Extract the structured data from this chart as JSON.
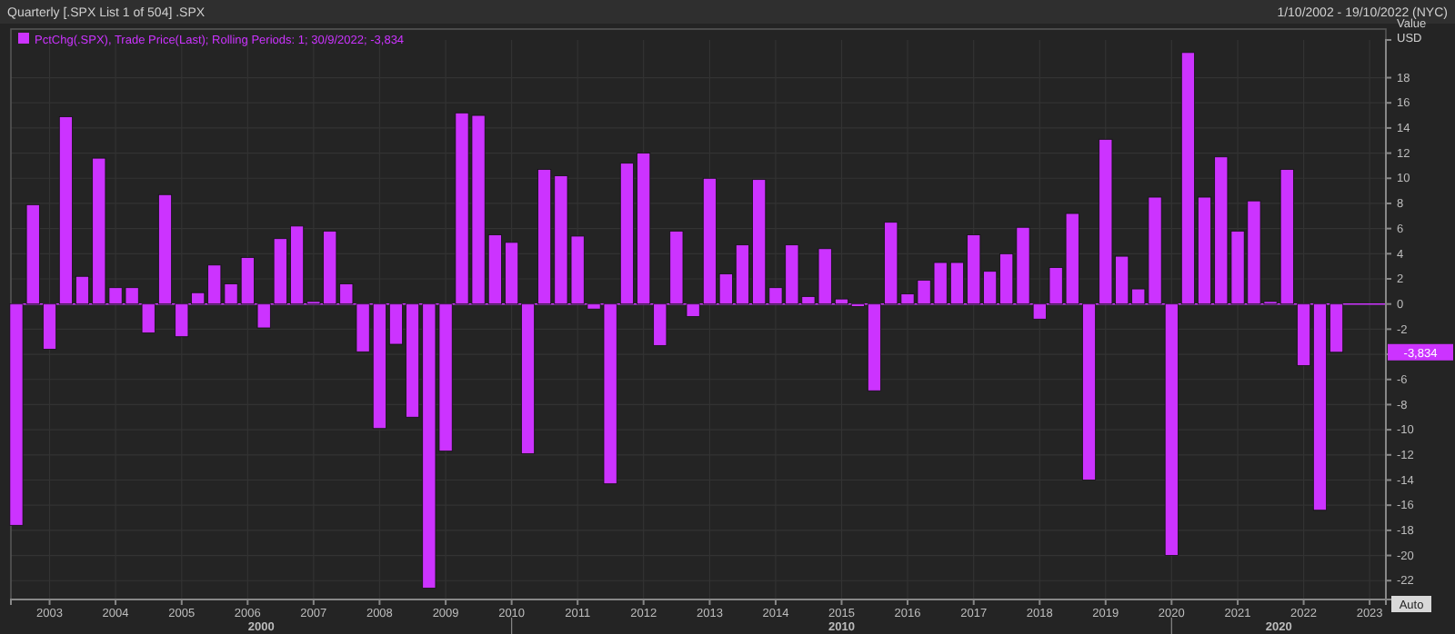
{
  "chart_data": {
    "type": "bar",
    "title": "Quarterly [.SPX List 1 of 504] .SPX",
    "subtitle": "1/10/2002 - 19/10/2022 (NYC)",
    "ylabel": "Value USD",
    "x": [
      "2002-07",
      "2002-10",
      "2003-01",
      "2003-04",
      "2003-07",
      "2003-10",
      "2004-01",
      "2004-04",
      "2004-07",
      "2004-10",
      "2005-01",
      "2005-04",
      "2005-07",
      "2005-10",
      "2006-01",
      "2006-04",
      "2006-07",
      "2006-10",
      "2007-01",
      "2007-04",
      "2007-07",
      "2007-10",
      "2008-01",
      "2008-04",
      "2008-07",
      "2008-10",
      "2009-01",
      "2009-04",
      "2009-07",
      "2009-10",
      "2010-01",
      "2010-04",
      "2010-07",
      "2010-10",
      "2011-01",
      "2011-04",
      "2011-07",
      "2011-10",
      "2012-01",
      "2012-04",
      "2012-07",
      "2012-10",
      "2013-01",
      "2013-04",
      "2013-07",
      "2013-10",
      "2014-01",
      "2014-04",
      "2014-07",
      "2014-10",
      "2015-01",
      "2015-04",
      "2015-07",
      "2015-10",
      "2016-01",
      "2016-04",
      "2016-07",
      "2016-10",
      "2017-01",
      "2017-04",
      "2017-07",
      "2017-10",
      "2018-01",
      "2018-04",
      "2018-07",
      "2018-10",
      "2019-01",
      "2019-04",
      "2019-07",
      "2019-10",
      "2020-01",
      "2020-04",
      "2020-07",
      "2020-10",
      "2021-01",
      "2021-04",
      "2021-07",
      "2021-10",
      "2022-01",
      "2022-04",
      "2022-07"
    ],
    "series": [
      {
        "name": "PctChg(.SPX), Trade Price(Last); Rolling Periods: 1; 30/9/2022; -3,834",
        "color": "#cc33ff",
        "values": [
          -17.6,
          7.9,
          -3.6,
          14.9,
          2.2,
          11.6,
          1.3,
          1.3,
          -2.3,
          8.7,
          -2.6,
          0.9,
          3.1,
          1.6,
          3.7,
          -1.9,
          5.2,
          6.2,
          0.2,
          5.8,
          1.6,
          -3.8,
          -9.9,
          -3.2,
          -9.0,
          -22.6,
          -11.7,
          15.2,
          15.0,
          5.5,
          4.9,
          -11.9,
          10.7,
          10.2,
          5.4,
          -0.4,
          -14.3,
          11.2,
          12.0,
          -3.3,
          5.8,
          -1.0,
          10.0,
          2.4,
          4.7,
          9.9,
          1.3,
          4.7,
          0.6,
          4.4,
          0.4,
          -0.2,
          -6.9,
          6.5,
          0.8,
          1.9,
          3.3,
          3.3,
          5.5,
          2.6,
          4.0,
          6.1,
          -1.2,
          2.9,
          7.2,
          -14.0,
          13.1,
          3.8,
          1.2,
          8.5,
          -20.0,
          20.0,
          8.5,
          11.7,
          5.8,
          8.2,
          0.2,
          10.7,
          -4.9,
          -16.4,
          -3.834
        ]
      }
    ],
    "xlim": [
      "2002-06",
      "2023-04"
    ],
    "xticks": [
      {
        "value": "2003-01",
        "label": "2003"
      },
      {
        "value": "2004-01",
        "label": "2004"
      },
      {
        "value": "2005-01",
        "label": "2005"
      },
      {
        "value": "2006-01",
        "label": "2006"
      },
      {
        "value": "2007-01",
        "label": "2007"
      },
      {
        "value": "2008-01",
        "label": "2008"
      },
      {
        "value": "2009-01",
        "label": "2009"
      },
      {
        "value": "2010-01",
        "label": "2010"
      },
      {
        "value": "2011-01",
        "label": "2011"
      },
      {
        "value": "2012-01",
        "label": "2012"
      },
      {
        "value": "2013-01",
        "label": "2013"
      },
      {
        "value": "2014-01",
        "label": "2014"
      },
      {
        "value": "2015-01",
        "label": "2015"
      },
      {
        "value": "2016-01",
        "label": "2016"
      },
      {
        "value": "2017-01",
        "label": "2017"
      },
      {
        "value": "2018-01",
        "label": "2018"
      },
      {
        "value": "2019-01",
        "label": "2019"
      },
      {
        "value": "2020-01",
        "label": "2020"
      },
      {
        "value": "2021-01",
        "label": "2021"
      },
      {
        "value": "2022-01",
        "label": "2022"
      },
      {
        "value": "2023-01",
        "label": "2023"
      }
    ],
    "ylim": [
      -23.5,
      21
    ],
    "yticks": [
      18,
      16,
      14,
      12,
      10,
      8,
      6,
      4,
      2,
      0,
      -2,
      {
        "value": -4,
        "label": null
      },
      -6,
      -8,
      -10,
      -12,
      -14,
      -16,
      -18,
      -20,
      -22
    ],
    "ref_lines": [
      {
        "axis": "y",
        "value": 0,
        "color": "#cc33ff"
      }
    ],
    "annotations": [
      "2000",
      "2010",
      "2020",
      "-3,834",
      "Auto"
    ],
    "grid": true,
    "legend": "top left"
  }
}
